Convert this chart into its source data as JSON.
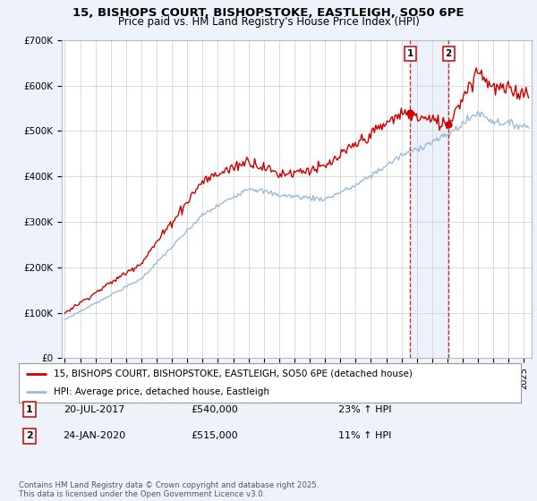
{
  "title_line1": "15, BISHOPS COURT, BISHOPSTOKE, EASTLEIGH, SO50 6PE",
  "title_line2": "Price paid vs. HM Land Registry's House Price Index (HPI)",
  "ylim": [
    0,
    700000
  ],
  "yticks": [
    0,
    100000,
    200000,
    300000,
    400000,
    500000,
    600000,
    700000
  ],
  "ytick_labels": [
    "£0",
    "£100K",
    "£200K",
    "£300K",
    "£400K",
    "£500K",
    "£600K",
    "£700K"
  ],
  "xlim_start": 1994.8,
  "xlim_end": 2025.5,
  "red_line_color": "#cc0000",
  "blue_line_color": "#99bbdd",
  "vline_color": "#cc0000",
  "sale1_date_num": 2017.55,
  "sale1_price": 540000,
  "sale1_label": "1",
  "sale1_date_str": "20-JUL-2017",
  "sale1_price_str": "£540,000",
  "sale1_hpi_str": "23% ↑ HPI",
  "sale2_date_num": 2020.07,
  "sale2_price": 515000,
  "sale2_label": "2",
  "sale2_date_str": "24-JAN-2020",
  "sale2_price_str": "£515,000",
  "sale2_hpi_str": "11% ↑ HPI",
  "legend_label1": "15, BISHOPS COURT, BISHOPSTOKE, EASTLEIGH, SO50 6PE (detached house)",
  "legend_label2": "HPI: Average price, detached house, Eastleigh",
  "footer_text": "Contains HM Land Registry data © Crown copyright and database right 2025.\nThis data is licensed under the Open Government Licence v3.0.",
  "bg_color": "#eef2fb",
  "plot_bg_color": "#ffffff",
  "grid_color": "#cccccc",
  "span_color": "#ccd8f0"
}
